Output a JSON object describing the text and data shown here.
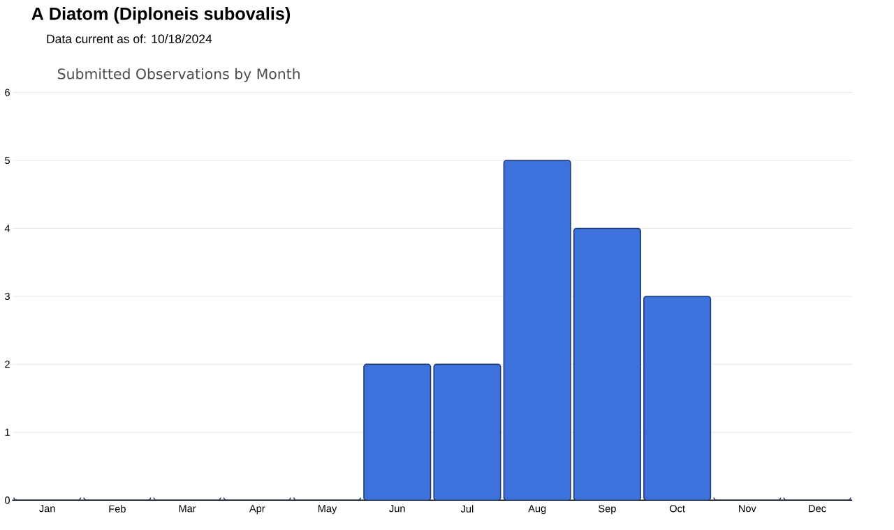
{
  "chart_data": {
    "type": "bar",
    "title": "A Diatom   (Diploneis subovalis)",
    "subtitle": "Data current as of: 10/18/2024",
    "annotations": [
      "Submitted Observations by Month"
    ],
    "categories": [
      "Jan",
      "Feb",
      "Mar",
      "Apr",
      "May",
      "Jun",
      "Jul",
      "Aug",
      "Sep",
      "Oct",
      "Nov",
      "Dec"
    ],
    "values": [
      0,
      0,
      0,
      0,
      0,
      2,
      2,
      5,
      4,
      3,
      0,
      0
    ],
    "color": "#3d72dc",
    "ylim": [
      0,
      6
    ],
    "yticks": [
      0,
      1,
      2,
      3,
      4,
      5,
      6
    ],
    "grid": "y"
  }
}
